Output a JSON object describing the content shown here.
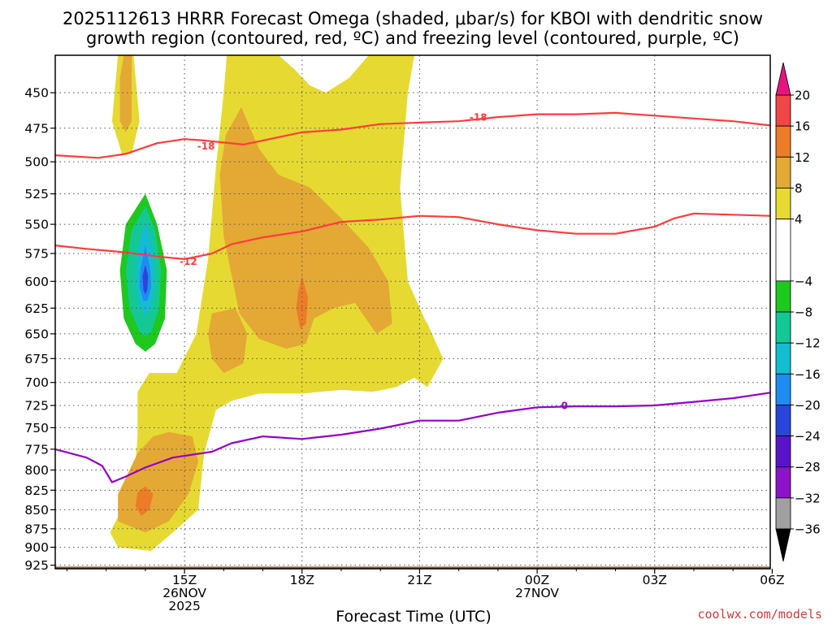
{
  "title_line1": "2025112613 HRRR Forecast Omega (shaded, μbar/s) for KBOI with dendritic snow",
  "title_line2": "growth region (contoured, red, ºC) and freezing level (contoured, purple, ºC)",
  "credit": "coolwx.com/models",
  "colors": {
    "credit": "#d33a3a",
    "dgz": "#ff3c3c",
    "freezing": "#9600c8",
    "ground": "#a0522d"
  },
  "chart_data": {
    "type": "contour",
    "xlabel": "Forecast Time (UTC)",
    "ylabel": "",
    "x_range_hours_from_15Z": [
      -3.3,
      14.95
    ],
    "y_range_mb": [
      425,
      930
    ],
    "y_scale": "log-pressure (inverted)",
    "grid": true,
    "yticks": [
      450,
      475,
      500,
      525,
      550,
      575,
      600,
      625,
      650,
      675,
      700,
      725,
      750,
      775,
      800,
      825,
      850,
      875,
      900,
      925
    ],
    "xticks": [
      {
        "hour": 0,
        "lines": [
          "15Z",
          "26NOV",
          "2025"
        ]
      },
      {
        "hour": 3,
        "lines": [
          "18Z"
        ]
      },
      {
        "hour": 6,
        "lines": [
          "21Z"
        ]
      },
      {
        "hour": 9,
        "lines": [
          "00Z",
          "27NOV"
        ]
      },
      {
        "hour": 12,
        "lines": [
          "03Z"
        ]
      },
      {
        "hour": 15,
        "lines": [
          "06Z"
        ]
      }
    ],
    "colorbar": {
      "labels": [
        20,
        16,
        12,
        8,
        4,
        -4,
        -8,
        -12,
        -16,
        -20,
        -24,
        -28,
        -32,
        -36
      ],
      "bands": [
        {
          "from": 16,
          "to": 20,
          "color": "#f04646"
        },
        {
          "from": 12,
          "to": 16,
          "color": "#ec7c28"
        },
        {
          "from": 8,
          "to": 12,
          "color": "#e4a834"
        },
        {
          "from": 4,
          "to": 8,
          "color": "#e6da32"
        },
        {
          "from": -4,
          "to": 4,
          "color": "#ffffff"
        },
        {
          "from": -8,
          "to": -4,
          "color": "#1ec81e"
        },
        {
          "from": -12,
          "to": -8,
          "color": "#14c896"
        },
        {
          "from": -16,
          "to": -12,
          "color": "#14bcd2"
        },
        {
          "from": -20,
          "to": -16,
          "color": "#1e8cf0"
        },
        {
          "from": -24,
          "to": -20,
          "color": "#2846dc"
        },
        {
          "from": -28,
          "to": -24,
          "color": "#5a14c8"
        },
        {
          "from": -32,
          "to": -28,
          "color": "#8c14c8"
        },
        {
          "from": -36,
          "to": -32,
          "color": "#a0a0a0"
        }
      ],
      "top_arrow_color": "#e6147d",
      "bottom_arrow_color": "#000000"
    },
    "shaded_regions": [
      {
        "name": "upward-4-8-west-column",
        "color": "#e6da32",
        "points": [
          [
            -1.7,
            425
          ],
          [
            -1.3,
            425
          ],
          [
            -1.15,
            470
          ],
          [
            -1.35,
            494
          ],
          [
            -1.6,
            494
          ],
          [
            -1.85,
            470
          ]
        ]
      },
      {
        "name": "upward-4-8-main",
        "color": "#e6da32",
        "points": [
          [
            1.1,
            418
          ],
          [
            1.7,
            422
          ],
          [
            2.5,
            420
          ],
          [
            2.4,
            425
          ],
          [
            2.8,
            434
          ],
          [
            3.2,
            445
          ],
          [
            3.6,
            450
          ],
          [
            4.2,
            440
          ],
          [
            4.7,
            425
          ],
          [
            5.9,
            420
          ],
          [
            5.7,
            450
          ],
          [
            5.5,
            520
          ],
          [
            5.7,
            600
          ],
          [
            6.3,
            650
          ],
          [
            6.1,
            690
          ],
          [
            5.4,
            705
          ],
          [
            4.8,
            710
          ],
          [
            4.0,
            708
          ],
          [
            3.0,
            712
          ],
          [
            1.9,
            712
          ],
          [
            1.2,
            720
          ],
          [
            0.8,
            730
          ],
          [
            0.5,
            780
          ],
          [
            0.35,
            850
          ],
          [
            -0.3,
            880
          ],
          [
            -0.85,
            905
          ],
          [
            -1.7,
            900
          ],
          [
            -1.9,
            880
          ],
          [
            -1.3,
            820
          ],
          [
            -1.2,
            760
          ],
          [
            -1.2,
            710
          ],
          [
            -0.9,
            690
          ],
          [
            -0.2,
            690
          ],
          [
            0.3,
            650
          ],
          [
            0.6,
            580
          ],
          [
            0.8,
            505
          ],
          [
            1.0,
            450
          ]
        ]
      },
      {
        "name": "upward-4-8-east-blob",
        "color": "#e6da32",
        "points": [
          [
            5.4,
            625
          ],
          [
            5.8,
            620
          ],
          [
            6.2,
            640
          ],
          [
            6.6,
            675
          ],
          [
            6.2,
            705
          ],
          [
            5.7,
            690
          ],
          [
            5.3,
            650
          ]
        ]
      },
      {
        "name": "upward-8-12-column",
        "color": "#e4a834",
        "points": [
          [
            1.45,
            460
          ],
          [
            1.9,
            490
          ],
          [
            2.4,
            510
          ],
          [
            3.2,
            520
          ],
          [
            4.0,
            545
          ],
          [
            4.7,
            570
          ],
          [
            5.2,
            600
          ],
          [
            5.3,
            640
          ],
          [
            4.9,
            650
          ],
          [
            4.35,
            620
          ],
          [
            3.8,
            625
          ],
          [
            3.3,
            635
          ],
          [
            3.1,
            660
          ],
          [
            2.6,
            665
          ],
          [
            1.9,
            655
          ],
          [
            1.4,
            630
          ],
          [
            1.0,
            560
          ],
          [
            0.9,
            510
          ],
          [
            1.05,
            480
          ]
        ]
      },
      {
        "name": "upward-8-12-west-top",
        "color": "#e4a834",
        "points": [
          [
            -1.55,
            425
          ],
          [
            -1.35,
            425
          ],
          [
            -1.35,
            470
          ],
          [
            -1.5,
            478
          ],
          [
            -1.65,
            470
          ],
          [
            -1.65,
            440
          ]
        ]
      },
      {
        "name": "upward-8-12-lower",
        "color": "#e4a834",
        "points": [
          [
            -0.4,
            755
          ],
          [
            0.2,
            760
          ],
          [
            0.35,
            790
          ],
          [
            0.1,
            830
          ],
          [
            -0.4,
            865
          ],
          [
            -1.0,
            880
          ],
          [
            -1.7,
            865
          ],
          [
            -1.7,
            830
          ],
          [
            -1.2,
            780
          ],
          [
            -0.8,
            760
          ]
        ]
      },
      {
        "name": "upward-8-12-small",
        "color": "#e4a834",
        "points": [
          [
            0.7,
            630
          ],
          [
            1.3,
            625
          ],
          [
            1.6,
            650
          ],
          [
            1.5,
            680
          ],
          [
            1.0,
            690
          ],
          [
            0.7,
            675
          ],
          [
            0.6,
            650
          ]
        ]
      },
      {
        "name": "upward-12-16-upper",
        "color": "#ec7c28",
        "points": [
          [
            3.0,
            595
          ],
          [
            3.15,
            615
          ],
          [
            3.1,
            640
          ],
          [
            2.95,
            645
          ],
          [
            2.85,
            625
          ],
          [
            2.9,
            610
          ]
        ]
      },
      {
        "name": "upward-12-16-lower",
        "color": "#ec7c28",
        "points": [
          [
            -1.0,
            820
          ],
          [
            -0.8,
            830
          ],
          [
            -0.9,
            850
          ],
          [
            -1.1,
            858
          ],
          [
            -1.25,
            845
          ],
          [
            -1.2,
            828
          ]
        ]
      },
      {
        "name": "downward-4-8",
        "color": "#1ec81e",
        "points": [
          [
            -1.0,
            525
          ],
          [
            -0.7,
            550
          ],
          [
            -0.45,
            590
          ],
          [
            -0.5,
            635
          ],
          [
            -0.75,
            660
          ],
          [
            -1.0,
            668
          ],
          [
            -1.25,
            660
          ],
          [
            -1.55,
            635
          ],
          [
            -1.65,
            590
          ],
          [
            -1.5,
            550
          ]
        ]
      },
      {
        "name": "downward-8-12",
        "color": "#14c896",
        "points": [
          [
            -1.0,
            535
          ],
          [
            -0.75,
            555
          ],
          [
            -0.6,
            590
          ],
          [
            -0.65,
            625
          ],
          [
            -0.85,
            648
          ],
          [
            -1.0,
            652
          ],
          [
            -1.15,
            648
          ],
          [
            -1.4,
            625
          ],
          [
            -1.5,
            590
          ],
          [
            -1.35,
            555
          ]
        ]
      },
      {
        "name": "downward-12-16",
        "color": "#14bcd2",
        "points": [
          [
            -1.0,
            548
          ],
          [
            -0.8,
            570
          ],
          [
            -0.75,
            600
          ],
          [
            -0.85,
            625
          ],
          [
            -1.0,
            632
          ],
          [
            -1.15,
            625
          ],
          [
            -1.25,
            600
          ],
          [
            -1.2,
            570
          ]
        ]
      },
      {
        "name": "downward-16-20",
        "color": "#1e8cf0",
        "points": [
          [
            -1.0,
            568
          ],
          [
            -0.88,
            588
          ],
          [
            -0.85,
            605
          ],
          [
            -0.95,
            618
          ],
          [
            -1.05,
            618
          ],
          [
            -1.15,
            605
          ],
          [
            -1.12,
            588
          ]
        ]
      },
      {
        "name": "downward-20-24",
        "color": "#2846dc",
        "points": [
          [
            -1.0,
            585
          ],
          [
            -0.93,
            595
          ],
          [
            -0.95,
            608
          ],
          [
            -1.0,
            612
          ],
          [
            -1.05,
            608
          ],
          [
            -1.07,
            595
          ]
        ]
      }
    ],
    "dgz_minus18": {
      "label": "-18",
      "label_positions": [
        [
          0.55,
          488
        ],
        [
          7.5,
          467
        ]
      ],
      "points": [
        [
          -3.3,
          495
        ],
        [
          -2.2,
          497
        ],
        [
          -1.5,
          494
        ],
        [
          -0.7,
          486
        ],
        [
          0.0,
          483
        ],
        [
          0.5,
          484
        ],
        [
          1.5,
          487
        ],
        [
          2.0,
          484
        ],
        [
          3.0,
          478
        ],
        [
          4.0,
          476
        ],
        [
          5.0,
          472
        ],
        [
          6.0,
          471
        ],
        [
          7.0,
          470
        ],
        [
          8.0,
          467
        ],
        [
          9.0,
          465
        ],
        [
          10.0,
          465
        ],
        [
          11.0,
          464
        ],
        [
          12.0,
          466
        ],
        [
          13.0,
          468
        ],
        [
          14.0,
          470
        ],
        [
          14.95,
          473
        ]
      ]
    },
    "dgz_minus12": {
      "label": "-12",
      "label_positions": [
        [
          0.1,
          582
        ]
      ],
      "points": [
        [
          -3.3,
          568
        ],
        [
          -2.5,
          571
        ],
        [
          -1.5,
          574
        ],
        [
          -0.6,
          578
        ],
        [
          0.0,
          580
        ],
        [
          0.7,
          575
        ],
        [
          1.2,
          567
        ],
        [
          2.0,
          561
        ],
        [
          3.0,
          556
        ],
        [
          4.0,
          548
        ],
        [
          5.0,
          546
        ],
        [
          6.0,
          543
        ],
        [
          7.0,
          544
        ],
        [
          8.0,
          550
        ],
        [
          9.0,
          555
        ],
        [
          10.0,
          558
        ],
        [
          11.0,
          558
        ],
        [
          12.0,
          552
        ],
        [
          12.5,
          545
        ],
        [
          13.0,
          541
        ],
        [
          14.0,
          542
        ],
        [
          14.95,
          543
        ]
      ]
    },
    "freezing_level": {
      "label": "0",
      "label_positions": [
        [
          9.7,
          725
        ]
      ],
      "points": [
        [
          -3.3,
          775
        ],
        [
          -2.5,
          785
        ],
        [
          -2.1,
          795
        ],
        [
          -1.85,
          815
        ],
        [
          -1.5,
          808
        ],
        [
          -1.0,
          797
        ],
        [
          -0.3,
          785
        ],
        [
          0.7,
          778
        ],
        [
          1.2,
          768
        ],
        [
          2.0,
          760
        ],
        [
          3.0,
          763
        ],
        [
          4.0,
          758
        ],
        [
          5.0,
          751
        ],
        [
          6.0,
          742
        ],
        [
          7.0,
          742
        ],
        [
          8.0,
          733
        ],
        [
          9.0,
          727
        ],
        [
          10.0,
          726
        ],
        [
          11.0,
          726
        ],
        [
          12.0,
          725
        ],
        [
          13.0,
          721
        ],
        [
          14.0,
          717
        ],
        [
          14.95,
          711
        ]
      ]
    },
    "ground_pressure_mb": 927
  }
}
